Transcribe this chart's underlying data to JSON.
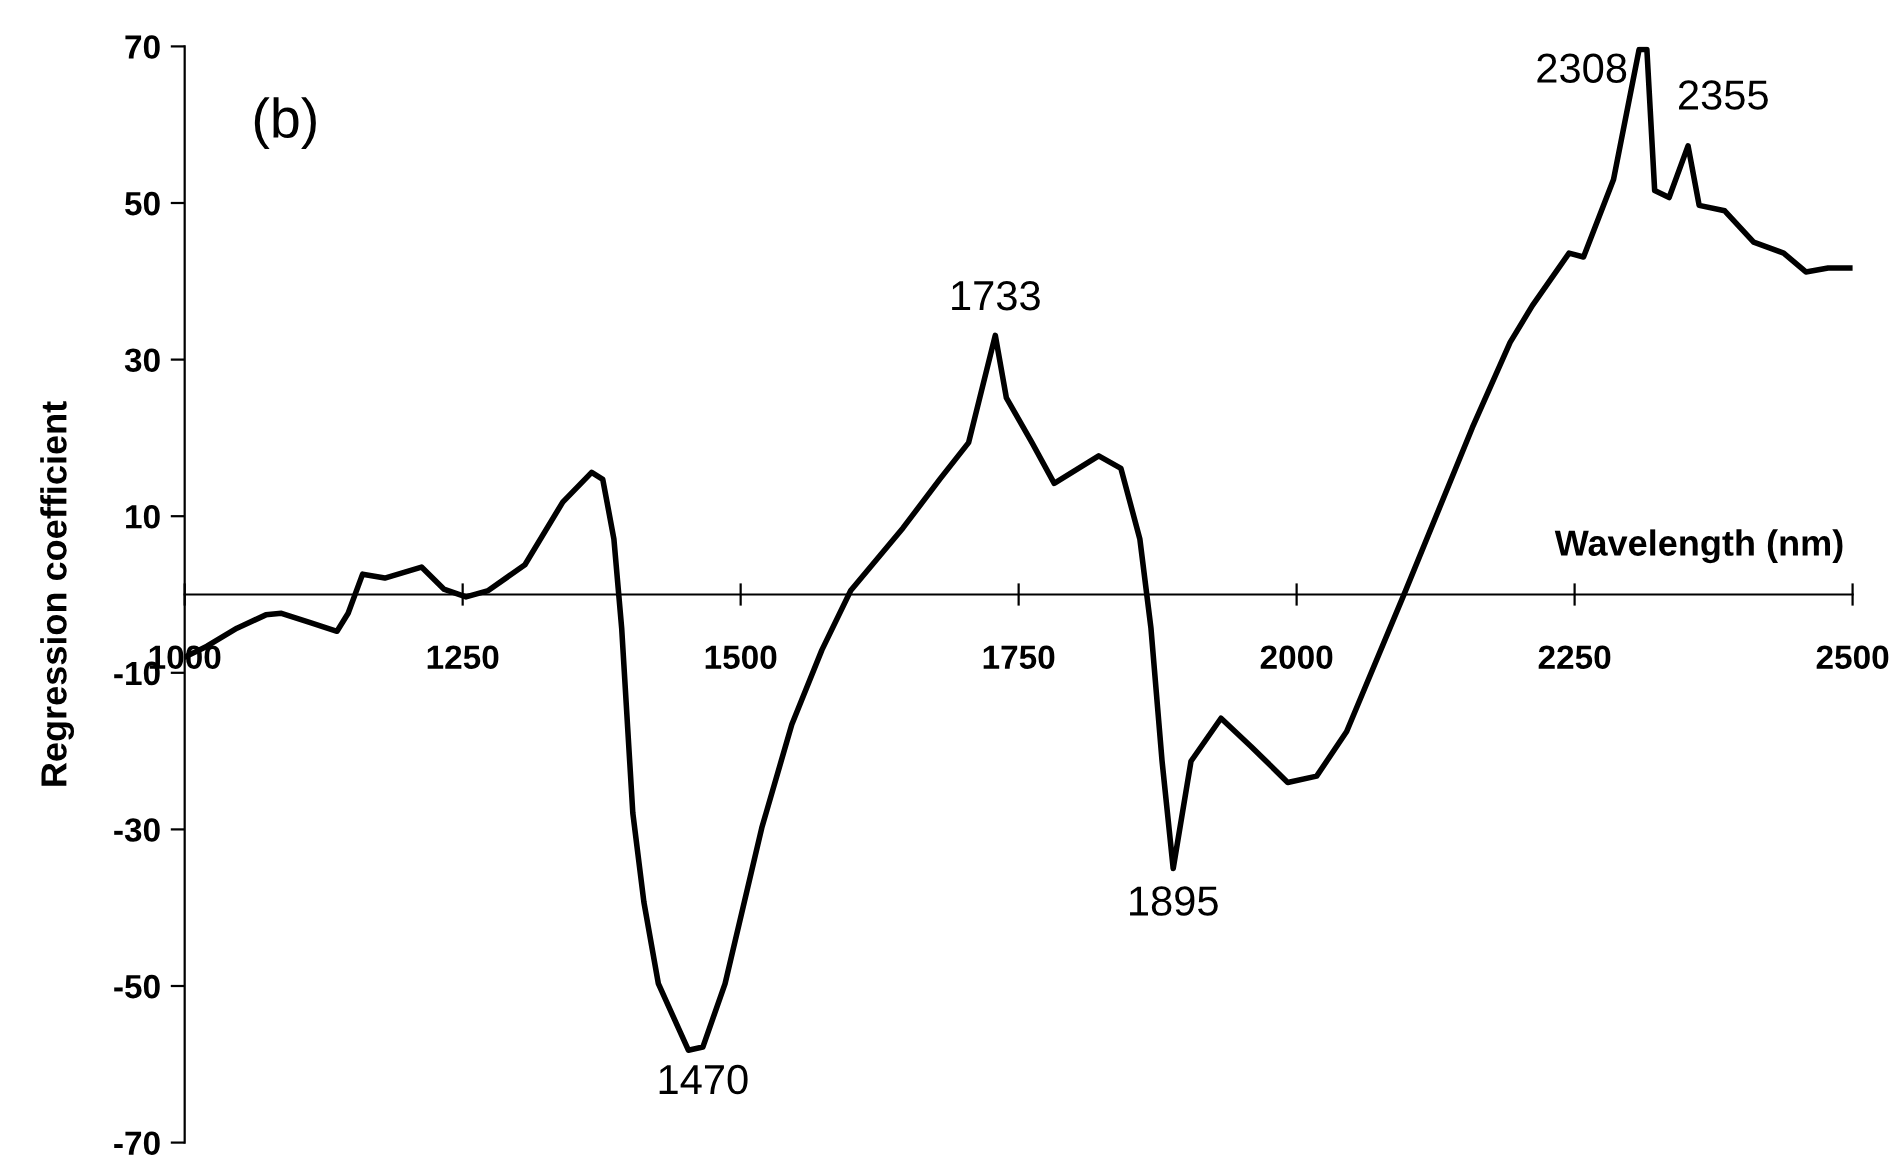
{
  "chart_data": {
    "type": "line",
    "xlabel": "Wavelength (nm)",
    "ylabel": "Regression coefficient",
    "annotations": [
      "(b)",
      {
        "text": "1470",
        "x": 1466,
        "y": -57.8
      },
      {
        "text": "1733",
        "x": 1729,
        "y": 33.1
      },
      {
        "text": "1895",
        "x": 1889,
        "y": -35.0
      },
      {
        "text": "2308",
        "x": 2308,
        "y": 69.6
      },
      {
        "text": "2355",
        "x": 2352,
        "y": 57.3
      }
    ],
    "x": [
      1000,
      1020,
      1047,
      1073,
      1087,
      1113,
      1137,
      1147,
      1160,
      1180,
      1213,
      1233,
      1253,
      1273,
      1306,
      1340,
      1366,
      1376,
      1386,
      1393,
      1403,
      1413,
      1426,
      1453,
      1466,
      1486,
      1519,
      1546,
      1573,
      1599,
      1646,
      1679,
      1705,
      1729,
      1739,
      1762,
      1782,
      1822,
      1842,
      1859,
      1869,
      1879,
      1889,
      1905,
      1932,
      1959,
      1992,
      2018,
      2045,
      2098,
      2158,
      2192,
      2212,
      2245,
      2258,
      2285,
      2308,
      2315,
      2322,
      2335,
      2352,
      2362,
      2385,
      2411,
      2438,
      2458,
      2478,
      2500
    ],
    "series": [
      {
        "color": "#000000",
        "values": [
          -8.0,
          -6.6,
          -4.3,
          -2.6,
          -2.4,
          -3.6,
          -4.7,
          -2.4,
          2.6,
          2.1,
          3.5,
          0.7,
          -0.3,
          0.5,
          3.8,
          11.8,
          15.6,
          14.7,
          7.1,
          -4.3,
          -27.9,
          -39.3,
          -49.7,
          -58.2,
          -57.8,
          -49.7,
          -29.8,
          -16.6,
          -7.1,
          0.5,
          8.5,
          14.7,
          19.4,
          33.1,
          25.1,
          19.4,
          14.2,
          17.7,
          16.1,
          7.1,
          -4.3,
          -21.3,
          -35.0,
          -21.3,
          -15.8,
          -19.4,
          -24.0,
          -23.2,
          -17.5,
          0.5,
          21.3,
          32.2,
          36.9,
          43.6,
          43.1,
          53.0,
          69.6,
          69.6,
          51.6,
          50.7,
          57.3,
          49.7,
          49.0,
          45.0,
          43.6,
          41.2,
          41.7,
          41.7
        ]
      }
    ],
    "xlim": [
      1000,
      2500
    ],
    "xticks": [
      1000,
      1250,
      1500,
      1750,
      2000,
      2250,
      2500
    ],
    "ylim": [
      -70,
      70
    ],
    "yticks": [
      -70,
      -50,
      -30,
      -10,
      10,
      30,
      50,
      70
    ],
    "grid": false,
    "marker": "none",
    "line_style": "solid"
  }
}
